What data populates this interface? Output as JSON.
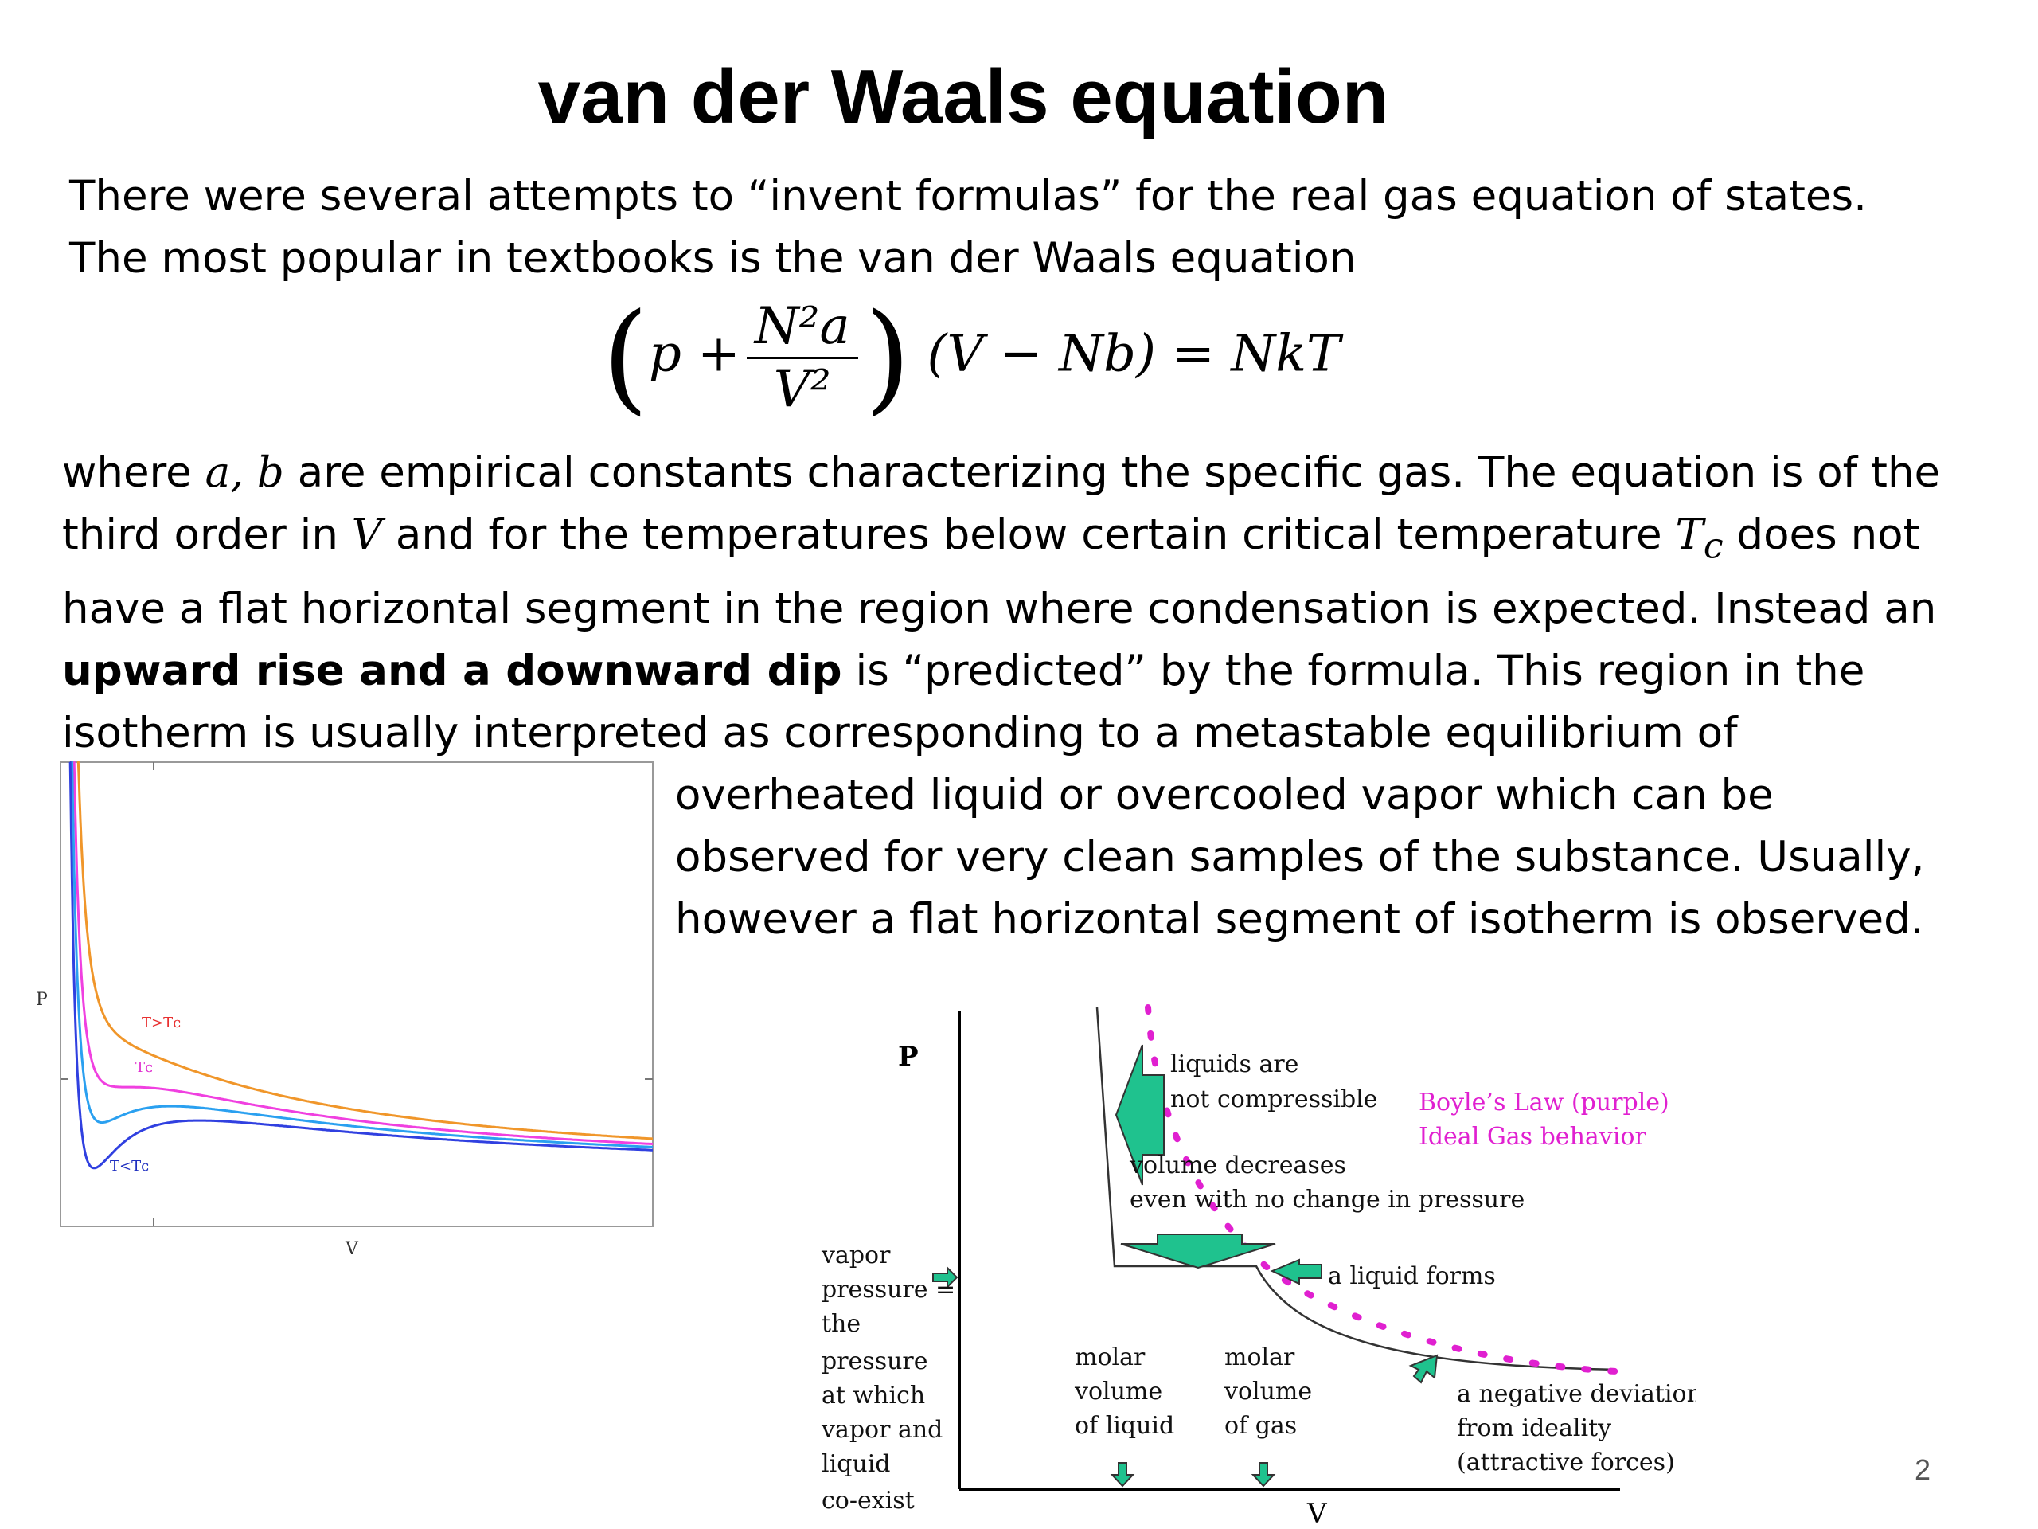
{
  "slide": {
    "title": "van der Waals equation",
    "page_number": "2"
  },
  "paragraph1": {
    "line1": "There were several attempts to “invent formulas” for the real gas equation of states.",
    "line2": "The most popular in textbooks is the van der Waals equation"
  },
  "equation": {
    "p_plus": "p +",
    "numerator": "N²a",
    "denominator": "V²",
    "rest": "(V − Nb) = NkT"
  },
  "paragraph2": {
    "l1_a": "where ",
    "l1_var": "a, b",
    "l1_b": " are empirical constants characterizing the specific gas. The equation is of the",
    "l2_a": "third order in ",
    "l2_var": "V",
    "l2_b": " and for the temperatures below certain critical temperature ",
    "l2_var2": "T",
    "l2_sub": "c",
    "l2_c": " does not",
    "l3": "have a flat horizontal segment in the region where condensation is expected. Instead an",
    "l4_bold": "upward rise and a downward dip",
    "l4_rest": " is “predicted” by the formula. This region in the",
    "l5": "isotherm is usually interpreted as corresponding to a metastable equilibrium of"
  },
  "paragraph3": {
    "line1": "overheated liquid or overcooled vapor which can be",
    "line2": "observed for very clean samples of the substance. Usually,",
    "line3": "however a flat horizontal segment of isotherm is observed."
  },
  "chart_data": [
    {
      "type": "line",
      "xlabel": "V",
      "ylabel": "P",
      "annotations": [
        "T>Tᴄ",
        "Tᴄ",
        "T<Tᴄ"
      ],
      "series": [
        {
          "color": "#e83030"
        },
        {
          "color": "#f0962a"
        },
        {
          "color": "#f040e0"
        },
        {
          "color": "#2aa0f0"
        },
        {
          "color": "#3040e0"
        }
      ]
    },
    {
      "type": "line",
      "xlabel": "V",
      "ylabel": "P",
      "labels": {
        "liquids_1": "liquids are",
        "liquids_2": "not compressible",
        "boyle_1": "Boyle’s Law (purple)",
        "boyle_2": "Ideal Gas behavior",
        "vol_dec_1": "volume decreases",
        "vol_dec_2": "even with no change in pressure",
        "liquid_forms": "a liquid forms",
        "vapor_pressure": [
          "vapor",
          "pressure =",
          "the",
          "pressure",
          "at which",
          "vapor and",
          "liquid",
          "co-exist"
        ],
        "molar_liquid": [
          "molar",
          "volume",
          "of liquid"
        ],
        "molar_gas": [
          "molar",
          "volume",
          "of gas"
        ],
        "neg_dev": [
          "a negative deviation",
          "from ideality",
          "(attractive forces)"
        ]
      },
      "colors": {
        "arrow": "#1fc28e",
        "boyle": "#e020d0"
      }
    }
  ]
}
